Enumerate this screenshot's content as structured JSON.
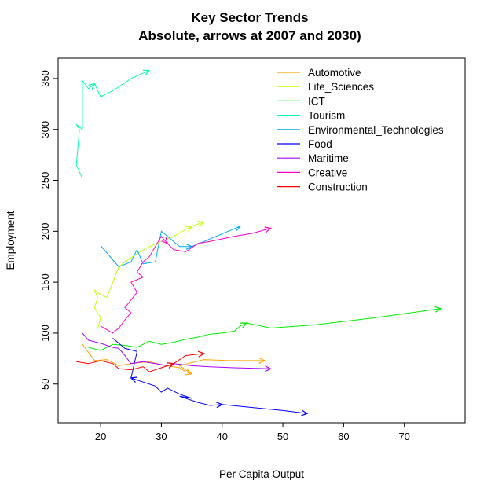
{
  "chart_data": {
    "type": "line",
    "title": "Key Sector Trends",
    "subtitle": "Absolute, arrows at 2007 and 2030)",
    "xlabel": "Per Capita Output",
    "ylabel": "Employment",
    "xlim": [
      13,
      80
    ],
    "ylim": [
      12,
      370
    ],
    "xticks": [
      20,
      30,
      40,
      50,
      60,
      70
    ],
    "yticks": [
      50,
      100,
      150,
      200,
      250,
      300,
      350
    ],
    "grid": false,
    "legend_position": "top-right",
    "series": [
      {
        "name": "Automotive",
        "color": "#FFA500",
        "points": [
          [
            17,
            89
          ],
          [
            19,
            73
          ],
          [
            21,
            74
          ],
          [
            23,
            68
          ],
          [
            25,
            70
          ],
          [
            28,
            72
          ],
          [
            30,
            69
          ],
          [
            33,
            66
          ],
          [
            34,
            62
          ],
          [
            35,
            60
          ],
          [
            33,
            68
          ],
          [
            37,
            74
          ],
          [
            41,
            73
          ],
          [
            47,
            73
          ]
        ],
        "arrows": [
          [
            8,
            9
          ],
          [
            12,
            13
          ]
        ]
      },
      {
        "name": "Life_Sciences",
        "color": "#C0FF00",
        "points": [
          [
            19.5,
            104
          ],
          [
            20,
            115
          ],
          [
            19,
            125
          ],
          [
            19.5,
            135
          ],
          [
            19,
            142
          ],
          [
            20,
            138
          ],
          [
            21,
            135
          ],
          [
            22,
            150
          ],
          [
            23,
            165
          ],
          [
            24,
            170
          ],
          [
            26,
            178
          ],
          [
            28,
            185
          ],
          [
            30,
            190
          ],
          [
            32,
            195
          ],
          [
            35,
            205
          ],
          [
            37,
            209
          ]
        ],
        "arrows": [
          [
            13,
            14
          ],
          [
            14,
            15
          ]
        ]
      },
      {
        "name": "ICT",
        "color": "#00EE00",
        "points": [
          [
            18,
            86
          ],
          [
            20,
            83
          ],
          [
            22,
            89
          ],
          [
            24,
            88
          ],
          [
            26,
            86
          ],
          [
            28,
            92
          ],
          [
            30,
            89
          ],
          [
            32,
            91
          ],
          [
            34,
            94
          ],
          [
            36,
            96
          ],
          [
            38,
            99
          ],
          [
            40,
            100
          ],
          [
            42,
            102
          ],
          [
            43,
            107
          ],
          [
            44,
            110
          ],
          [
            48,
            105
          ],
          [
            55,
            108
          ],
          [
            65,
            115
          ],
          [
            76,
            124
          ]
        ],
        "arrows": [
          [
            13,
            14
          ],
          [
            17,
            18
          ]
        ]
      },
      {
        "name": "Tourism",
        "color": "#00FFAA",
        "points": [
          [
            17,
            252
          ],
          [
            16,
            265
          ],
          [
            16.5,
            300
          ],
          [
            16,
            305
          ],
          [
            17,
            300
          ],
          [
            17,
            340
          ],
          [
            17,
            348
          ],
          [
            18,
            340
          ],
          [
            19,
            345
          ],
          [
            20,
            332
          ],
          [
            22,
            338
          ],
          [
            25,
            350
          ],
          [
            28,
            358
          ]
        ],
        "arrows": [
          [
            7,
            8
          ],
          [
            11,
            12
          ]
        ]
      },
      {
        "name": "Environmental_Technologies",
        "color": "#00AAFF",
        "points": [
          [
            20,
            186
          ],
          [
            22,
            172
          ],
          [
            23,
            165
          ],
          [
            25,
            170
          ],
          [
            26,
            182
          ],
          [
            27,
            168
          ],
          [
            29,
            170
          ],
          [
            30,
            200
          ],
          [
            31,
            195
          ],
          [
            33,
            185
          ],
          [
            35,
            185
          ],
          [
            37,
            190
          ],
          [
            39,
            195
          ],
          [
            41,
            200
          ],
          [
            43,
            205
          ]
        ],
        "arrows": [
          [
            9,
            10
          ],
          [
            13,
            14
          ]
        ]
      },
      {
        "name": "Food",
        "color": "#0000FF",
        "points": [
          [
            22,
            95
          ],
          [
            24,
            85
          ],
          [
            26,
            82
          ],
          [
            25,
            56
          ],
          [
            27,
            52
          ],
          [
            29,
            48
          ],
          [
            30,
            42
          ],
          [
            31,
            46
          ],
          [
            33,
            40
          ],
          [
            35,
            36
          ],
          [
            33,
            38
          ],
          [
            36,
            32
          ],
          [
            38,
            29
          ],
          [
            40,
            30
          ],
          [
            45,
            27
          ],
          [
            50,
            24
          ],
          [
            54,
            21
          ]
        ],
        "arrows": [
          [
            4,
            3
          ],
          [
            12,
            13
          ],
          [
            15,
            16
          ]
        ]
      },
      {
        "name": "Maritime",
        "color": "#AA00FF",
        "points": [
          [
            17,
            100
          ],
          [
            18,
            93
          ],
          [
            20,
            90
          ],
          [
            22,
            86
          ],
          [
            23,
            85
          ],
          [
            24,
            78
          ],
          [
            25,
            70
          ],
          [
            27,
            72
          ],
          [
            29,
            70
          ],
          [
            31,
            68
          ],
          [
            32,
            70
          ],
          [
            35,
            68
          ],
          [
            38,
            67
          ],
          [
            42,
            66
          ],
          [
            48,
            65
          ]
        ],
        "arrows": [
          [
            9,
            10
          ],
          [
            13,
            14
          ]
        ]
      },
      {
        "name": "Creative",
        "color": "#FF00CC",
        "points": [
          [
            20,
            107
          ],
          [
            22,
            100
          ],
          [
            23,
            105
          ],
          [
            24,
            113
          ],
          [
            25,
            120
          ],
          [
            24,
            125
          ],
          [
            26,
            140
          ],
          [
            25,
            150
          ],
          [
            27,
            155
          ],
          [
            26,
            160
          ],
          [
            27,
            170
          ],
          [
            28,
            175
          ],
          [
            29,
            185
          ],
          [
            30,
            195
          ],
          [
            31,
            188
          ],
          [
            32,
            182
          ],
          [
            34,
            180
          ],
          [
            36,
            188
          ],
          [
            38,
            190
          ],
          [
            42,
            195
          ],
          [
            45,
            198
          ],
          [
            48,
            203
          ]
        ],
        "arrows": [
          [
            13,
            14
          ],
          [
            20,
            21
          ]
        ]
      },
      {
        "name": "Construction",
        "color": "#FF0000",
        "points": [
          [
            16,
            72
          ],
          [
            18,
            70
          ],
          [
            20,
            73
          ],
          [
            22,
            70
          ],
          [
            23,
            65
          ],
          [
            25,
            64
          ],
          [
            27,
            67
          ],
          [
            28,
            62
          ],
          [
            30,
            66
          ],
          [
            32,
            70
          ],
          [
            34,
            78
          ],
          [
            37,
            80
          ]
        ],
        "arrows": [
          [
            8,
            9
          ],
          [
            10,
            11
          ]
        ]
      }
    ]
  }
}
